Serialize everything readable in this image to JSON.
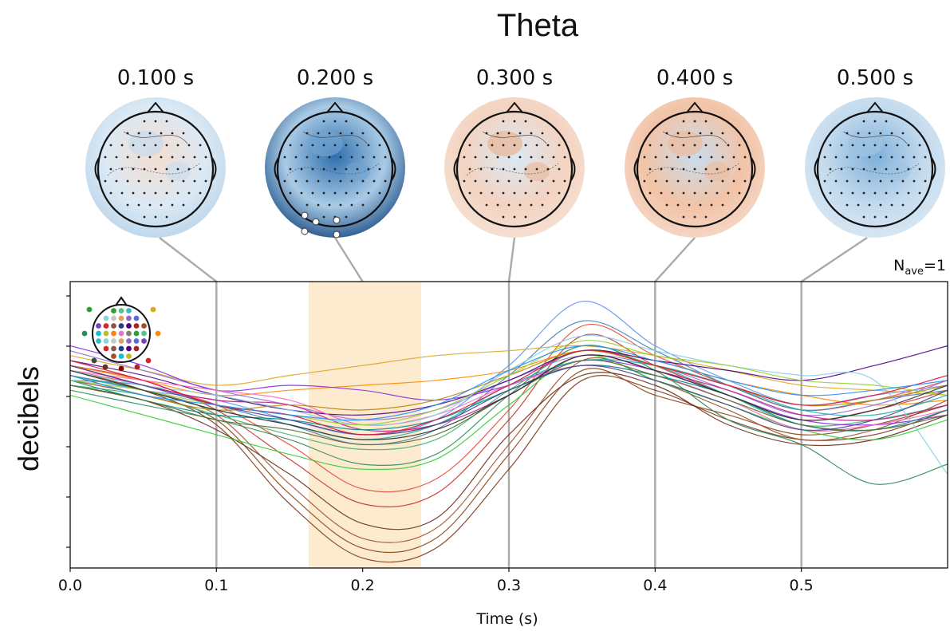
{
  "chart_data": {
    "type": "line",
    "title": "Theta",
    "xlabel": "Time (s)",
    "ylabel": "decibels",
    "annotation": "N",
    "annotation_sub": "ave",
    "annotation_suffix": "=1",
    "xlim": [
      0.0,
      0.6
    ],
    "ylim": [
      -3.5,
      2.3
    ],
    "x_ticks": [
      0.0,
      0.1,
      0.2,
      0.3,
      0.4,
      0.5
    ],
    "x_tick_labels": [
      "0.0",
      "0.1",
      "0.2",
      "0.3",
      "0.4",
      "0.5"
    ],
    "y_tick_count": 6,
    "highlight_span": [
      0.163,
      0.24
    ],
    "highlight_color": "#fdebd0",
    "marker_line_color": "#aaaaaa",
    "grid": false,
    "legend": "sensor-layout head inset at top-left",
    "topomaps": [
      {
        "time": 0.1,
        "label": "0.100 s"
      },
      {
        "time": 0.2,
        "label": "0.200 s"
      },
      {
        "time": 0.3,
        "label": "0.300 s"
      },
      {
        "time": 0.4,
        "label": "0.400 s"
      },
      {
        "time": 0.5,
        "label": "0.500 s"
      }
    ],
    "x": [
      0.0,
      0.05,
      0.1,
      0.15,
      0.2,
      0.25,
      0.3,
      0.35,
      0.4,
      0.45,
      0.5,
      0.55,
      0.6
    ],
    "series": [
      {
        "color": "#7a3b1c",
        "values": [
          0.5,
          0.1,
          -0.6,
          -2.2,
          -3.3,
          -3.1,
          -1.5,
          0.3,
          0.1,
          -0.5,
          -0.9,
          -0.8,
          -0.3
        ]
      },
      {
        "color": "#8b4513",
        "values": [
          0.3,
          0.0,
          -0.5,
          -2.0,
          -3.1,
          -2.9,
          -1.2,
          0.5,
          0.0,
          -0.4,
          -0.8,
          -0.6,
          -0.2
        ]
      },
      {
        "color": "#a0522d",
        "values": [
          0.4,
          0.1,
          -0.4,
          -1.8,
          -2.9,
          -2.7,
          -1.0,
          0.7,
          0.3,
          -0.3,
          -0.9,
          -0.7,
          -0.1
        ]
      },
      {
        "color": "#6b2e1a",
        "values": [
          0.2,
          -0.1,
          -0.7,
          -1.6,
          -2.6,
          -2.5,
          -0.8,
          0.4,
          0.2,
          -0.6,
          -1.0,
          -0.9,
          -0.4
        ]
      },
      {
        "color": "#c0392b",
        "values": [
          0.6,
          0.3,
          -0.3,
          -1.3,
          -2.2,
          -2.0,
          -0.5,
          1.2,
          0.6,
          0.0,
          -0.5,
          -0.3,
          0.1
        ]
      },
      {
        "color": "#e74c3c",
        "values": [
          0.5,
          0.2,
          -0.2,
          -1.0,
          -1.9,
          -1.7,
          -0.3,
          1.4,
          0.8,
          0.2,
          -0.3,
          -0.1,
          0.3
        ]
      },
      {
        "color": "#6495ed",
        "values": [
          0.4,
          0.1,
          -0.1,
          -0.5,
          -0.8,
          -0.5,
          0.6,
          1.9,
          1.0,
          0.3,
          -0.2,
          0.0,
          0.2
        ]
      },
      {
        "color": "#4682b4",
        "values": [
          0.3,
          0.2,
          -0.2,
          -0.6,
          -1.0,
          -0.7,
          0.4,
          1.5,
          0.9,
          0.2,
          -0.3,
          -0.1,
          0.1
        ]
      },
      {
        "color": "#2e8b57",
        "values": [
          0.1,
          -0.2,
          -0.5,
          -0.9,
          -1.4,
          -1.2,
          0.0,
          1.0,
          0.5,
          -0.5,
          -1.0,
          -1.8,
          -1.4
        ]
      },
      {
        "color": "#32cd32",
        "values": [
          0.0,
          -0.4,
          -0.8,
          -1.2,
          -1.5,
          -1.3,
          -0.2,
          0.8,
          0.3,
          -0.2,
          -0.7,
          -0.9,
          -0.5
        ]
      },
      {
        "color": "#3cb371",
        "values": [
          0.2,
          0.0,
          -0.4,
          -0.8,
          -1.1,
          -0.9,
          0.1,
          0.9,
          0.6,
          0.0,
          -0.6,
          -0.5,
          -0.2
        ]
      },
      {
        "color": "#daa520",
        "values": [
          0.8,
          0.5,
          0.2,
          0.4,
          0.6,
          0.8,
          0.9,
          1.0,
          0.8,
          0.5,
          0.2,
          0.1,
          0.0
        ]
      },
      {
        "color": "#ff8c00",
        "values": [
          0.6,
          0.3,
          0.0,
          0.1,
          0.2,
          0.3,
          0.5,
          0.9,
          0.7,
          0.3,
          0.0,
          -0.2,
          -0.1
        ]
      },
      {
        "color": "#9370db",
        "values": [
          0.9,
          0.5,
          0.1,
          -0.2,
          -0.5,
          -0.3,
          0.3,
          0.8,
          0.6,
          0.1,
          -0.4,
          -0.2,
          0.3
        ]
      },
      {
        "color": "#8a2be2",
        "values": [
          1.0,
          0.6,
          0.1,
          0.2,
          0.1,
          -0.1,
          0.2,
          0.7,
          0.5,
          0.0,
          -0.5,
          -0.6,
          -0.4
        ]
      },
      {
        "color": "#4b0082",
        "values": [
          0.7,
          0.4,
          0.0,
          -0.3,
          -0.4,
          -0.2,
          0.3,
          0.9,
          0.7,
          0.5,
          0.3,
          0.6,
          1.0
        ]
      },
      {
        "color": "#ff69b4",
        "values": [
          0.5,
          0.3,
          0.1,
          -0.1,
          -0.6,
          -0.4,
          0.2,
          0.6,
          0.4,
          -0.1,
          -0.7,
          -0.6,
          -0.3
        ]
      },
      {
        "color": "#c71585",
        "values": [
          0.6,
          0.2,
          -0.1,
          -0.2,
          -0.7,
          -0.6,
          0.0,
          0.8,
          0.5,
          0.1,
          -0.4,
          -0.5,
          -0.2
        ]
      },
      {
        "color": "#20b2aa",
        "values": [
          0.4,
          0.1,
          -0.3,
          -0.6,
          -0.9,
          -0.6,
          0.2,
          0.7,
          0.6,
          0.2,
          -0.3,
          -0.4,
          0.0
        ]
      },
      {
        "color": "#008b8b",
        "values": [
          0.3,
          -0.1,
          -0.4,
          -0.5,
          -0.7,
          -0.5,
          0.1,
          0.6,
          0.4,
          0.0,
          -0.6,
          -0.7,
          -0.3
        ]
      },
      {
        "color": "#87ceeb",
        "values": [
          0.5,
          0.2,
          0.0,
          -0.3,
          -0.6,
          -0.4,
          0.5,
          1.2,
          0.9,
          0.6,
          0.4,
          0.3,
          -1.6
        ]
      },
      {
        "color": "#556b2f",
        "values": [
          0.2,
          -0.1,
          -0.5,
          -0.7,
          -1.0,
          -0.8,
          0.0,
          0.7,
          0.4,
          -0.1,
          -0.6,
          -0.7,
          -0.4
        ]
      },
      {
        "color": "#b8860b",
        "values": [
          0.4,
          0.0,
          -0.3,
          -0.2,
          -0.3,
          -0.1,
          0.4,
          0.9,
          0.6,
          0.2,
          -0.2,
          -0.1,
          0.2
        ]
      },
      {
        "color": "#9acd32",
        "values": [
          0.3,
          0.1,
          -0.2,
          -0.4,
          -0.6,
          -0.3,
          0.4,
          1.1,
          0.8,
          0.6,
          0.3,
          0.2,
          0.0
        ]
      },
      {
        "color": "#483d8b",
        "values": [
          0.6,
          0.2,
          -0.2,
          -0.5,
          -0.8,
          -0.6,
          0.1,
          0.6,
          0.3,
          -0.2,
          -0.7,
          -0.5,
          0.1
        ]
      },
      {
        "color": "#2f2f2f",
        "values": [
          0.5,
          0.1,
          -0.3,
          -0.6,
          -0.9,
          -0.7,
          0.0,
          0.8,
          0.5,
          0.0,
          -0.5,
          -0.3,
          0.2
        ]
      },
      {
        "color": "#dc143c",
        "values": [
          0.7,
          0.3,
          -0.2,
          -0.4,
          -0.8,
          -0.5,
          0.2,
          0.9,
          0.6,
          0.2,
          -0.2,
          0.0,
          0.4
        ]
      },
      {
        "color": "#1e90ff",
        "values": [
          0.4,
          0.0,
          -0.2,
          -0.4,
          -0.5,
          -0.2,
          0.5,
          1.0,
          0.7,
          0.3,
          0.0,
          0.1,
          0.3
        ]
      }
    ]
  }
}
